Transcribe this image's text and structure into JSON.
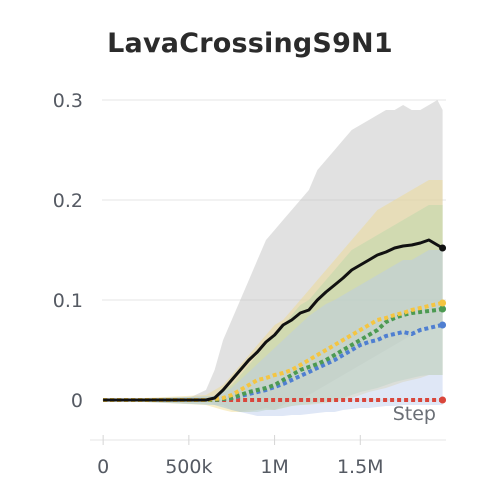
{
  "chart_data": {
    "type": "line",
    "title": "LavaCrossingS9N1",
    "xlabel": "Step",
    "ylabel": "",
    "xlim": [
      -100000,
      2000000
    ],
    "ylim": [
      -0.04,
      0.3
    ],
    "x_ticks": [
      0,
      500000,
      1000000,
      1500000
    ],
    "x_tick_labels": [
      "0",
      "500k",
      "1M",
      "1.5M"
    ],
    "y_ticks": [
      0,
      0.1,
      0.2,
      0.3
    ],
    "y_tick_labels": [
      "0",
      "0.1",
      "0.2",
      "0.3"
    ],
    "grid": "horizontal",
    "series": [
      {
        "color": "#111111",
        "style": "solid",
        "band_color": "#bdbdbd",
        "x": [
          0,
          500000,
          600000,
          650000,
          700000,
          750000,
          800000,
          850000,
          900000,
          950000,
          1000000,
          1050000,
          1100000,
          1150000,
          1200000,
          1250000,
          1300000,
          1350000,
          1400000,
          1450000,
          1500000,
          1550000,
          1600000,
          1650000,
          1700000,
          1750000,
          1800000,
          1850000,
          1900000,
          1950000,
          1980000
        ],
        "values": [
          0,
          0,
          0,
          0.002,
          0.01,
          0.02,
          0.03,
          0.04,
          0.048,
          0.058,
          0.065,
          0.075,
          0.08,
          0.087,
          0.09,
          0.1,
          0.108,
          0.115,
          0.122,
          0.13,
          0.135,
          0.14,
          0.145,
          0.148,
          0.152,
          0.154,
          0.155,
          0.157,
          0.16,
          0.155,
          0.152
        ],
        "lower": [
          0,
          0,
          0,
          -0.005,
          -0.005,
          -0.01,
          -0.012,
          -0.01,
          -0.01,
          -0.008,
          -0.01,
          -0.005,
          0,
          0,
          0.005,
          0.01,
          0.015,
          0.02,
          0.025,
          0.03,
          0.035,
          0.04,
          0.045,
          0.05,
          0.055,
          0.06,
          0.065,
          0.07,
          0.075,
          0.075,
          0.075
        ],
        "upper": [
          0,
          0.002,
          0.01,
          0.03,
          0.06,
          0.08,
          0.1,
          0.12,
          0.14,
          0.16,
          0.17,
          0.18,
          0.19,
          0.2,
          0.21,
          0.23,
          0.24,
          0.25,
          0.26,
          0.27,
          0.275,
          0.28,
          0.285,
          0.29,
          0.29,
          0.295,
          0.29,
          0.29,
          0.295,
          0.3,
          0.29
        ]
      },
      {
        "color": "#f4c542",
        "style": "dotted",
        "band_color": "#f0d98a",
        "x": [
          0,
          600000,
          700000,
          750000,
          800000,
          850000,
          900000,
          950000,
          1000000,
          1050000,
          1100000,
          1150000,
          1200000,
          1250000,
          1300000,
          1350000,
          1400000,
          1450000,
          1500000,
          1550000,
          1600000,
          1650000,
          1700000,
          1750000,
          1800000,
          1850000,
          1900000,
          1950000,
          1980000
        ],
        "values": [
          0,
          0,
          0.002,
          0.005,
          0.01,
          0.015,
          0.02,
          0.022,
          0.025,
          0.027,
          0.03,
          0.035,
          0.04,
          0.045,
          0.05,
          0.055,
          0.06,
          0.065,
          0.07,
          0.075,
          0.08,
          0.082,
          0.085,
          0.087,
          0.09,
          0.092,
          0.094,
          0.096,
          0.097
        ],
        "lower": [
          0,
          -0.005,
          -0.01,
          -0.012,
          -0.012,
          -0.012,
          -0.01,
          -0.01,
          -0.01,
          -0.008,
          -0.006,
          -0.005,
          -0.005,
          -0.004,
          -0.003,
          -0.002,
          0,
          0.002,
          0.005,
          0.008,
          0.01,
          0.012,
          0.015,
          0.018,
          0.02,
          0.022,
          0.025,
          0.025,
          0.025
        ],
        "upper": [
          0,
          0.005,
          0.015,
          0.025,
          0.035,
          0.045,
          0.055,
          0.065,
          0.075,
          0.08,
          0.09,
          0.1,
          0.11,
          0.12,
          0.13,
          0.14,
          0.15,
          0.16,
          0.17,
          0.18,
          0.19,
          0.195,
          0.2,
          0.205,
          0.21,
          0.215,
          0.22,
          0.22,
          0.22
        ]
      },
      {
        "color": "#4c9a52",
        "style": "dotted",
        "band_color": "#b6d6a8",
        "x": [
          0,
          650000,
          750000,
          800000,
          850000,
          900000,
          950000,
          1000000,
          1050000,
          1100000,
          1150000,
          1200000,
          1250000,
          1300000,
          1350000,
          1400000,
          1450000,
          1500000,
          1550000,
          1600000,
          1650000,
          1700000,
          1750000,
          1800000,
          1850000,
          1900000,
          1950000,
          1980000
        ],
        "values": [
          0,
          0,
          0.002,
          0.005,
          0.008,
          0.01,
          0.012,
          0.015,
          0.02,
          0.025,
          0.03,
          0.033,
          0.036,
          0.04,
          0.045,
          0.05,
          0.055,
          0.06,
          0.065,
          0.07,
          0.078,
          0.082,
          0.085,
          0.087,
          0.088,
          0.089,
          0.09,
          0.091
        ],
        "lower": [
          0,
          -0.005,
          -0.01,
          -0.012,
          -0.012,
          -0.012,
          -0.01,
          -0.01,
          -0.008,
          -0.006,
          -0.005,
          -0.004,
          -0.003,
          -0.002,
          0,
          0.002,
          0.005,
          0.008,
          0.01,
          0.012,
          0.015,
          0.018,
          0.02,
          0.022,
          0.024,
          0.025,
          0.025,
          0.025
        ],
        "upper": [
          0,
          0.004,
          0.015,
          0.025,
          0.035,
          0.045,
          0.055,
          0.065,
          0.075,
          0.085,
          0.095,
          0.1,
          0.11,
          0.12,
          0.13,
          0.14,
          0.15,
          0.155,
          0.16,
          0.165,
          0.17,
          0.175,
          0.18,
          0.185,
          0.19,
          0.195,
          0.195,
          0.195
        ]
      },
      {
        "color": "#4f7fd1",
        "style": "dotted",
        "band_color": "#b8c9ea",
        "x": [
          0,
          650000,
          750000,
          800000,
          850000,
          900000,
          950000,
          1000000,
          1050000,
          1100000,
          1150000,
          1200000,
          1250000,
          1300000,
          1350000,
          1400000,
          1450000,
          1500000,
          1550000,
          1600000,
          1650000,
          1700000,
          1750000,
          1800000,
          1850000,
          1900000,
          1950000,
          1980000
        ],
        "values": [
          0,
          0,
          0.002,
          0.004,
          0.006,
          0.008,
          0.01,
          0.013,
          0.016,
          0.02,
          0.024,
          0.028,
          0.032,
          0.036,
          0.04,
          0.045,
          0.05,
          0.055,
          0.058,
          0.06,
          0.064,
          0.066,
          0.068,
          0.066,
          0.07,
          0.072,
          0.074,
          0.075
        ],
        "lower": [
          0,
          -0.005,
          -0.01,
          -0.012,
          -0.014,
          -0.016,
          -0.016,
          -0.016,
          -0.016,
          -0.015,
          -0.015,
          -0.014,
          -0.013,
          -0.012,
          -0.012,
          -0.01,
          -0.009,
          -0.008,
          -0.008,
          -0.007,
          -0.006,
          -0.006,
          -0.005,
          -0.005,
          -0.005,
          -0.005,
          -0.005,
          -0.005
        ],
        "upper": [
          0,
          0.004,
          0.012,
          0.02,
          0.028,
          0.036,
          0.044,
          0.052,
          0.06,
          0.068,
          0.076,
          0.084,
          0.09,
          0.096,
          0.1,
          0.105,
          0.11,
          0.115,
          0.12,
          0.125,
          0.13,
          0.135,
          0.14,
          0.14,
          0.145,
          0.15,
          0.15,
          0.15
        ]
      },
      {
        "color": "#d9463b",
        "style": "dotted",
        "band_color": "#e9b6b0",
        "x": [
          0,
          500000,
          1000000,
          1500000,
          1980000
        ],
        "values": [
          0,
          0,
          0,
          0,
          0
        ],
        "lower": [
          0,
          0,
          0,
          0,
          0
        ],
        "upper": [
          0,
          0,
          0,
          0,
          0
        ]
      }
    ]
  }
}
